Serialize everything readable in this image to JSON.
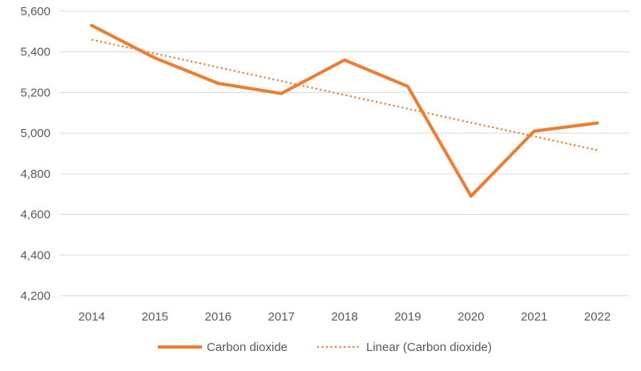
{
  "chart_data": {
    "type": "line",
    "title": "",
    "xlabel": "",
    "ylabel": "",
    "categories": [
      "2014",
      "2015",
      "2016",
      "2017",
      "2018",
      "2019",
      "2020",
      "2021",
      "2022"
    ],
    "ylim": [
      4200,
      5600
    ],
    "yticks": [
      4200,
      4400,
      4600,
      4800,
      5000,
      5200,
      5400,
      5600
    ],
    "ytick_labels": [
      "4,200",
      "4,400",
      "4,600",
      "4,800",
      "5,000",
      "5,200",
      "5,400",
      "5,600"
    ],
    "grid": true,
    "legend_position": "bottom",
    "series": [
      {
        "name": "Carbon dioxide",
        "style": "solid",
        "color": "#ED7D31",
        "values": [
          5530,
          5370,
          5245,
          5195,
          5360,
          5230,
          4690,
          5010,
          5050
        ]
      },
      {
        "name": "Linear (Carbon dioxide)",
        "style": "dotted",
        "color": "#ED7D31",
        "values": [
          5460,
          5392,
          5324,
          5256,
          5188,
          5120,
          5052,
          4984,
          4916
        ]
      }
    ]
  }
}
